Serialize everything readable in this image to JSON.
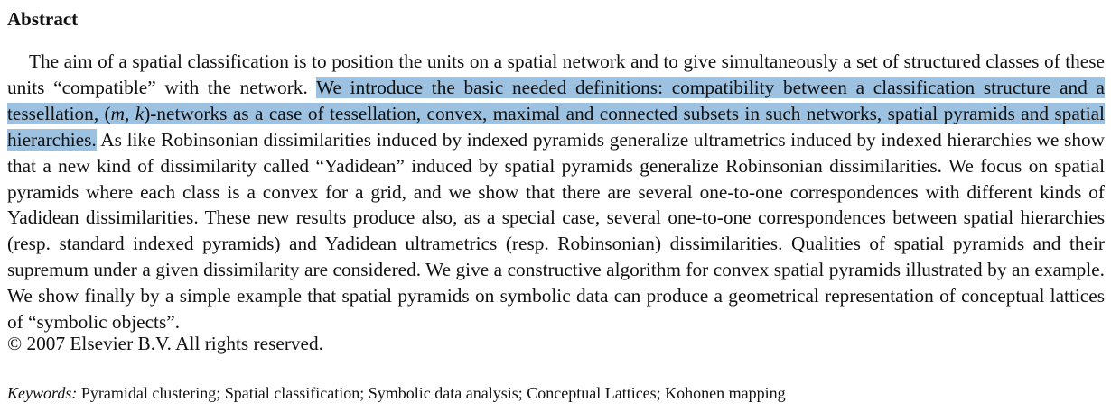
{
  "heading": "Abstract",
  "abstract": {
    "part1": "The aim of a spatial classification is to position the units on a spatial network and to give simultaneously a set of structured classes of these units “compatible” with the network. ",
    "highlight_a": "We introduce the basic needed definitions: compatibility between a classification structure and a tessellation, (",
    "math_m": "m",
    "comma": ", ",
    "math_k": "k",
    "highlight_b": ")-networks as a case of tessellation, convex, maximal and connected subsets in such networks, spatial pyramids and spatial hierarchies.",
    "part2": " As like Robinsonian dissimilarities induced by indexed pyramids generalize ultrametrics induced by indexed hierarchies we show that a new kind of dissimilarity called “Yadidean” induced by spatial pyramids generalize Robinsonian dissimilarities. We focus on spatial pyramids where each class is a convex for a grid, and we show that there are several one-to-one correspondences with different kinds of Yadidean dissimilarities. These new results produce also, as a special case, several one-to-one correspondences between spatial hierarchies (resp. standard indexed pyramids) and Yadidean ultrametrics (resp. Robinsonian) dissimilarities. Qualities of spatial pyramids and their supremum under a given dissimilarity are considered. We give a constructive algorithm for convex spatial pyramids illustrated by an example. We show finally by a simple example that spatial pyramids on symbolic data can produce a geometrical representation of conceptual lattices of “symbolic objects”."
  },
  "copyright": "© 2007 Elsevier B.V. All rights reserved.",
  "keywords": {
    "label": "Keywords:",
    "text": " Pyramidal clustering; Spatial classification; Symbolic data analysis; Conceptual Lattices; Kohonen mapping"
  },
  "colors": {
    "selection_highlight": "#9dc1e0",
    "text": "#111111"
  }
}
